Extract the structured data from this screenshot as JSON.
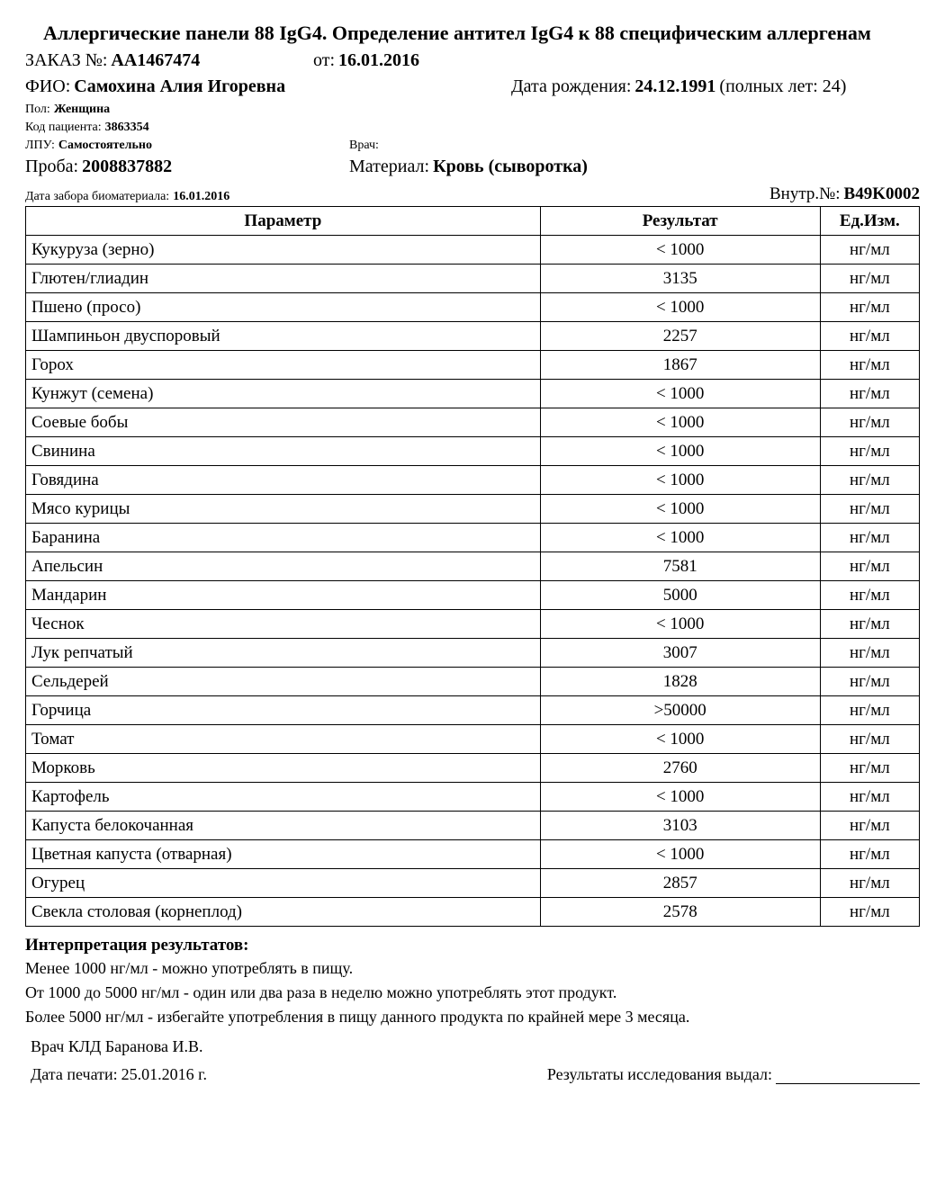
{
  "title": "Аллергические панели 88 IgG4. Определение антител IgG4 к 88 специфическим аллергенам",
  "order": {
    "order_label": "ЗАКАЗ №:",
    "order_number": "АА1467474",
    "date_label": "от:",
    "date": "16.01.2016"
  },
  "patient": {
    "fio_label": "ФИО:",
    "fio": "Самохина Алия Игоревна",
    "dob_label": "Дата рождения:",
    "dob": "24.12.1991",
    "age_text": "(полных лет: 24)",
    "sex_label": "Пол:",
    "sex": "Женщина",
    "code_label": "Код пациента:",
    "code": "3863354",
    "lpu_label": "ЛПУ:",
    "lpu": "Самостоятельно",
    "doctor_label": "Врач:",
    "doctor": ""
  },
  "sample": {
    "sample_label": "Проба:",
    "sample": "2008837882",
    "material_label": "Материал:",
    "material": "Кровь (сыворотка)",
    "collect_label": "Дата забора биоматериала:",
    "collect_date": "16.01.2016",
    "internal_label": "Внутр.№:",
    "internal": "B49K0002"
  },
  "table": {
    "columns": [
      "Параметр",
      "Результат",
      "Ед.Изм."
    ],
    "rows": [
      [
        "Кукуруза (зерно)",
        "< 1000",
        "нг/мл"
      ],
      [
        "Глютен/глиадин",
        "3135",
        "нг/мл"
      ],
      [
        "Пшено (просо)",
        "< 1000",
        "нг/мл"
      ],
      [
        "Шампиньон двуспоровый",
        "2257",
        "нг/мл"
      ],
      [
        "Горох",
        "1867",
        "нг/мл"
      ],
      [
        "Кунжут (семена)",
        "< 1000",
        "нг/мл"
      ],
      [
        "Соевые бобы",
        "< 1000",
        "нг/мл"
      ],
      [
        "Свинина",
        "< 1000",
        "нг/мл"
      ],
      [
        "Говядина",
        "< 1000",
        "нг/мл"
      ],
      [
        "Мясо курицы",
        "< 1000",
        "нг/мл"
      ],
      [
        "Баранина",
        "< 1000",
        "нг/мл"
      ],
      [
        "Апельсин",
        "7581",
        "нг/мл"
      ],
      [
        "Мандарин",
        "5000",
        "нг/мл"
      ],
      [
        "Чеснок",
        "< 1000",
        "нг/мл"
      ],
      [
        "Лук репчатый",
        "3007",
        "нг/мл"
      ],
      [
        "Сельдерей",
        "1828",
        "нг/мл"
      ],
      [
        "Горчица",
        ">50000",
        "нг/мл"
      ],
      [
        "Томат",
        "< 1000",
        "нг/мл"
      ],
      [
        "Морковь",
        "2760",
        "нг/мл"
      ],
      [
        "Картофель",
        "< 1000",
        "нг/мл"
      ],
      [
        "Капуста белокочанная",
        "3103",
        "нг/мл"
      ],
      [
        "Цветная капуста (отварная)",
        "< 1000",
        "нг/мл"
      ],
      [
        "Огурец",
        "2857",
        "нг/мл"
      ],
      [
        "Свекла столовая (корнеплод)",
        "2578",
        "нг/мл"
      ]
    ]
  },
  "interpretation": {
    "title": "Интерпретация результатов:",
    "lines": [
      "Менее 1000 нг/мл - можно употреблять в пищу.",
      "От 1000 до 5000 нг/мл - один или два раза в неделю можно употреблять этот продукт.",
      "Более 5000 нг/мл - избегайте употребления в пищу данного продукта по крайней мере 3 месяца."
    ]
  },
  "footer": {
    "doctor_kld": "Врач КЛД Баранова И.В.",
    "print_date_label": "Дата печати:",
    "print_date": "25.01.2016 г.",
    "issued_label": "Результаты исследования выдал:"
  }
}
